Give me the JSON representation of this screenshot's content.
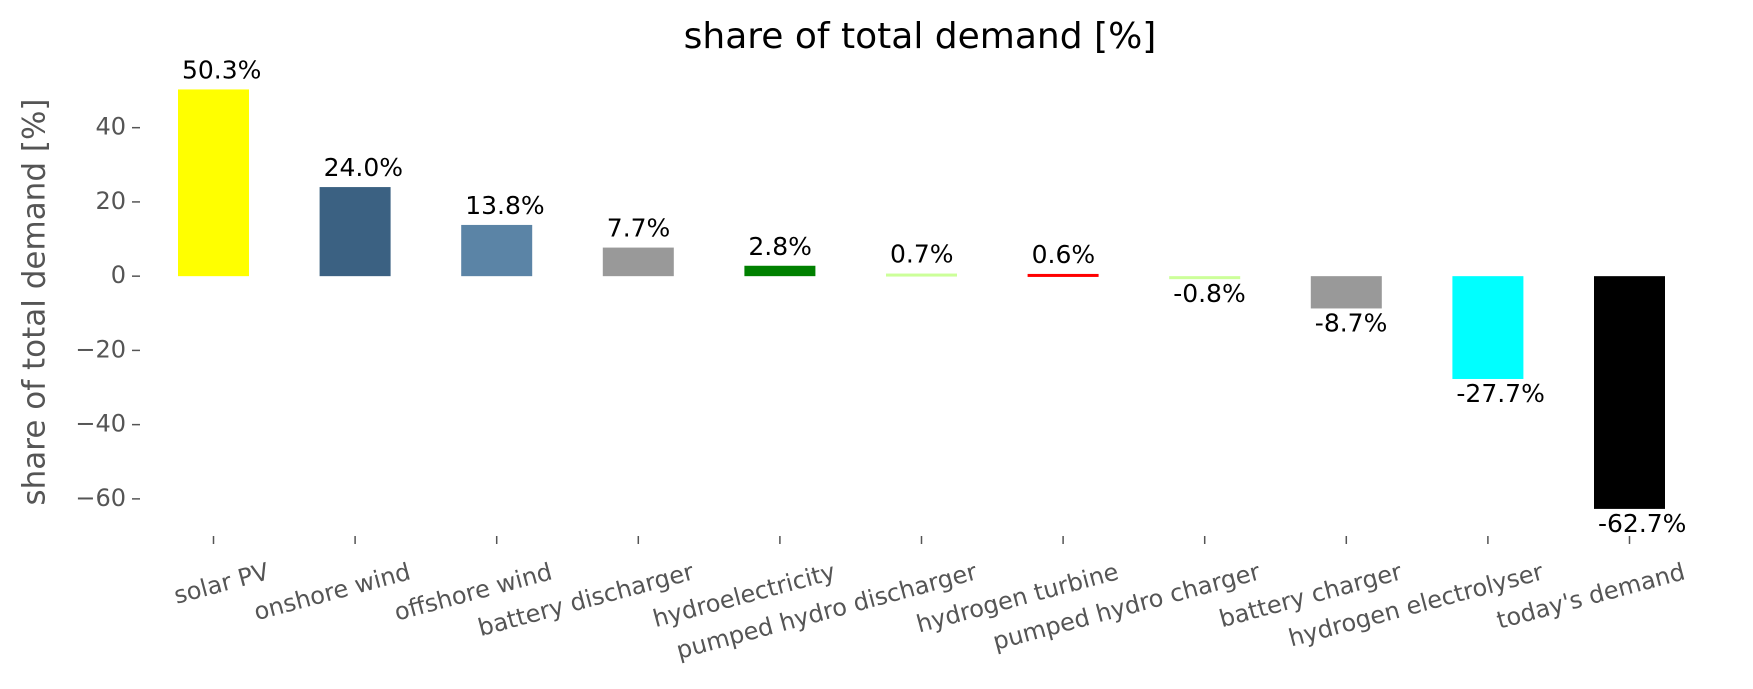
{
  "chart_data": {
    "type": "bar",
    "title": "share of total demand [%]",
    "ylabel": "share of total demand [%]",
    "categories": [
      "solar PV",
      "onshore wind",
      "offshore wind",
      "battery discharger",
      "hydroelectricity",
      "pumped hydro discharger",
      "hydrogen turbine",
      "pumped hydro charger",
      "battery charger",
      "hydrogen electrolyser",
      "today's demand"
    ],
    "values": [
      50.3,
      24.0,
      13.8,
      7.7,
      2.8,
      0.7,
      0.6,
      -0.8,
      -8.7,
      -27.7,
      -62.7
    ],
    "value_labels": [
      "50.3%",
      "24.0%",
      "13.8%",
      "7.7%",
      "2.8%",
      "0.7%",
      "0.6%",
      "-0.8%",
      "-8.7%",
      "-27.7%",
      "-62.7%"
    ],
    "colors": [
      "#ffff00",
      "#3b6182",
      "#5b84a6",
      "#999999",
      "#008000",
      "#ccff99",
      "#ff0000",
      "#ccff99",
      "#999999",
      "#00ffff",
      "#000000"
    ],
    "ylim": [
      -70,
      55
    ],
    "yticks": [
      {
        "value": -60,
        "label": "−60"
      },
      {
        "value": -40,
        "label": "−40"
      },
      {
        "value": -20,
        "label": "−20"
      },
      0,
      20,
      40
    ]
  }
}
